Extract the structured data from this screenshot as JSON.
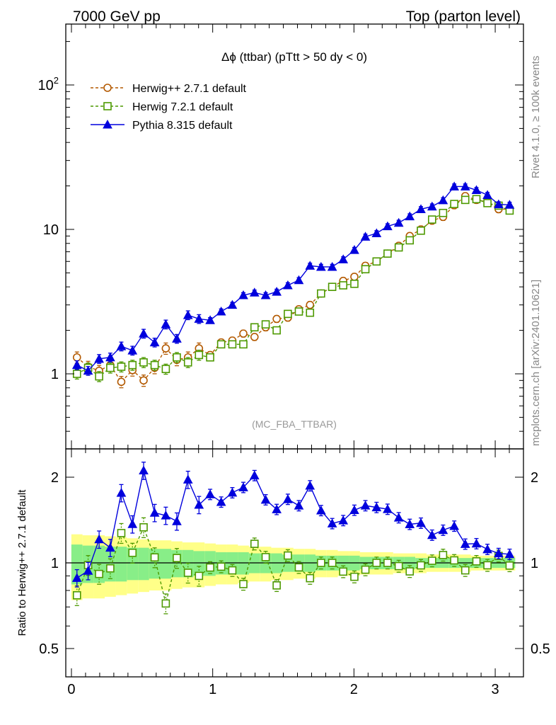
{
  "header": {
    "left": "7000 GeV pp",
    "right": "Top (parton level)"
  },
  "side_labels": {
    "rivet": "Rivet 4.1.0, ≥ 100k events",
    "mcplots": "mcplots.cern.ch [arXiv:2401.10621]"
  },
  "chart_data": {
    "type": "line",
    "title": "Δϕ (ttbar) (pTtt > 50 dy < 0)",
    "watermark": "(MC_FBA_TTBAR)",
    "xlabel": "",
    "ylabel": "",
    "xlim": [
      -0.04,
      3.2
    ],
    "ylim": [
      0.3,
      300
    ],
    "yscale": "log",
    "x_ticks": [
      "0",
      "1",
      "2",
      "3"
    ],
    "y_ticks": [
      "1",
      "10",
      "10^2"
    ],
    "legend_position": "top-left",
    "x": [
      0.039,
      0.118,
      0.196,
      0.275,
      0.353,
      0.432,
      0.511,
      0.589,
      0.668,
      0.746,
      0.825,
      0.903,
      0.982,
      1.06,
      1.139,
      1.217,
      1.296,
      1.375,
      1.453,
      1.532,
      1.61,
      1.689,
      1.767,
      1.846,
      1.924,
      2.003,
      2.081,
      2.16,
      2.238,
      2.317,
      2.395,
      2.474,
      2.553,
      2.631,
      2.71,
      2.788,
      2.867,
      2.945,
      3.024,
      3.102
    ],
    "series": [
      {
        "name": "Herwig++ 2.7.1 default",
        "color": "#b35900",
        "marker": "circle-open",
        "dashed": true,
        "values": [
          1.3,
          1.12,
          1.05,
          1.15,
          0.88,
          1.06,
          0.9,
          1.1,
          1.5,
          1.25,
          1.3,
          1.5,
          1.35,
          1.65,
          1.7,
          1.9,
          1.8,
          2.1,
          2.4,
          2.45,
          2.8,
          3.0,
          3.6,
          4.0,
          4.4,
          4.7,
          5.6,
          6.0,
          6.8,
          7.7,
          9.0,
          10.0,
          11.5,
          12.2,
          14.7,
          17.0,
          16.0,
          15.5,
          13.8,
          13.8
        ]
      },
      {
        "name": "Herwig 7.2.1 default",
        "color": "#4d9900",
        "marker": "square-open",
        "dashed": true,
        "values": [
          1.0,
          1.1,
          0.96,
          1.1,
          1.12,
          1.15,
          1.2,
          1.15,
          1.08,
          1.3,
          1.2,
          1.35,
          1.3,
          1.6,
          1.6,
          1.6,
          2.1,
          2.2,
          2.0,
          2.6,
          2.7,
          2.65,
          3.6,
          4.0,
          4.1,
          4.2,
          5.3,
          6.0,
          6.8,
          7.5,
          8.4,
          9.8,
          11.7,
          13.0,
          15.0,
          16.0,
          16.2,
          15.2,
          14.6,
          13.5
        ]
      },
      {
        "name": "Pythia 8.315 default",
        "color": "#0000dd",
        "marker": "triangle-filled",
        "dashed": false,
        "values": [
          1.15,
          1.05,
          1.27,
          1.3,
          1.55,
          1.45,
          1.9,
          1.65,
          2.2,
          1.75,
          2.55,
          2.4,
          2.35,
          2.7,
          3.0,
          3.5,
          3.65,
          3.5,
          3.7,
          4.1,
          4.45,
          5.6,
          5.5,
          5.5,
          6.2,
          7.2,
          8.9,
          9.4,
          10.5,
          11.1,
          12.3,
          13.8,
          14.4,
          15.9,
          19.8,
          19.8,
          18.7,
          17.3,
          14.9,
          14.8
        ]
      }
    ],
    "ratio_panel": {
      "ylabel": "Ratio to Herwig++ 2.7.1 default",
      "ylim": [
        0.4,
        2.3
      ],
      "y_ticks": [
        "0.5",
        "1",
        "2"
      ],
      "reference": "Herwig++ 2.7.1 default",
      "band_inner_halfwidth_percent": [
        16,
        15,
        15,
        14,
        14,
        13,
        13,
        12,
        12,
        11,
        11,
        10,
        10,
        9,
        9,
        9,
        8,
        8,
        8,
        7,
        7,
        7,
        6,
        6,
        6,
        6,
        5,
        5,
        5,
        5,
        5,
        4,
        4,
        4,
        4,
        4,
        4,
        4,
        4,
        4
      ],
      "band_outer_halfwidth_percent": [
        26,
        25,
        25,
        24,
        23,
        22,
        21,
        20,
        20,
        19,
        18,
        18,
        17,
        16,
        16,
        15,
        14,
        14,
        13,
        13,
        12,
        12,
        11,
        11,
        10,
        10,
        9,
        9,
        9,
        8,
        8,
        8,
        7,
        7,
        7,
        7,
        6,
        6,
        6,
        6
      ]
    }
  }
}
